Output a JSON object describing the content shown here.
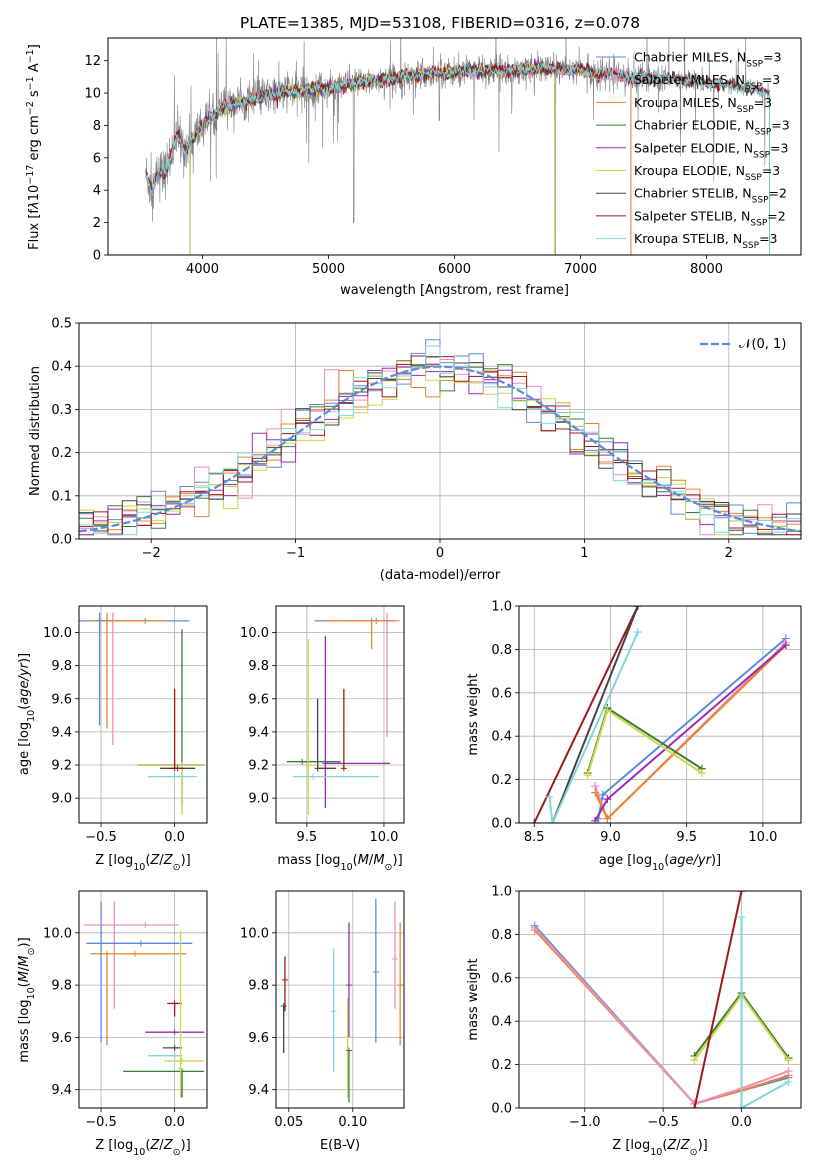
{
  "figure_title": "PLATE=1385, MJD=53108, FIBERID=0316, z=0.078",
  "colors": {
    "Chabrier MILES": "#5b8bd9",
    "Salpeter MILES": "#f08cc0",
    "Kroupa MILES": "#e8862a",
    "Chabrier ELODIE": "#3a7d3a",
    "Salpeter ELODIE": "#a028b8",
    "Kroupa ELODIE": "#c9d94a",
    "Chabrier STELIB": "#444444",
    "Salpeter STELIB": "#a01818",
    "Kroupa STELIB": "#7fd6dc",
    "data": "#808080",
    "gaussian": "#5b8bd9"
  },
  "chart_data": [
    {
      "id": "spectrum",
      "type": "line",
      "title": "PLATE=1385, MJD=53108, FIBERID=0316, z=0.078",
      "xlabel": "wavelength [Angstrom, rest frame]",
      "ylabel": "Flux [f",
      "ylabel_rest": "10",
      "xlim": [
        3250,
        8750
      ],
      "ylim": [
        0,
        13.4
      ],
      "xticks": [
        4000,
        5000,
        6000,
        7000,
        8000
      ],
      "yticks": [
        0,
        2,
        4,
        6,
        8,
        10,
        12
      ],
      "grid": false,
      "legend_position": "right",
      "legend": [
        {
          "name": "Chabrier MILES",
          "sub": "3"
        },
        {
          "name": "Salpeter MILES",
          "sub": "3"
        },
        {
          "name": "Kroupa MILES",
          "sub": "3"
        },
        {
          "name": "Chabrier ELODIE",
          "sub": "3"
        },
        {
          "name": "Salpeter ELODIE",
          "sub": "3"
        },
        {
          "name": "Kroupa ELODIE",
          "sub": "3"
        },
        {
          "name": "Chabrier STELIB",
          "sub": "2"
        },
        {
          "name": "Salpeter STELIB",
          "sub": "2"
        },
        {
          "name": "Kroupa STELIB",
          "sub": "3"
        }
      ],
      "continuum_x": [
        3550,
        3600,
        3650,
        3700,
        3750,
        3800,
        3850,
        3900,
        3950,
        4000,
        4100,
        4200,
        4300,
        4400,
        4500,
        4600,
        4800,
        5000,
        5200,
        5400,
        5600,
        5800,
        6000,
        6200,
        6400,
        6600,
        6800,
        7000,
        7200,
        7400,
        7600,
        7800,
        8000,
        8200,
        8400,
        8500
      ],
      "continuum_y": [
        5.0,
        4.0,
        5.2,
        5.0,
        6.2,
        7.5,
        6.6,
        6.8,
        7.5,
        8.0,
        8.8,
        9.2,
        9.4,
        9.6,
        9.8,
        10.0,
        10.2,
        10.3,
        10.6,
        10.8,
        11.0,
        11.2,
        11.3,
        11.4,
        11.4,
        11.5,
        11.5,
        11.4,
        11.2,
        11.0,
        10.9,
        10.8,
        10.6,
        10.5,
        10.2,
        10.0
      ]
    },
    {
      "id": "residuals",
      "type": "histogram",
      "xlabel": "(data-model)/error",
      "ylabel": "Normed distribution",
      "xlim": [
        -2.5,
        2.5
      ],
      "ylim": [
        0,
        0.5
      ],
      "xticks": [
        -2,
        -1,
        0,
        1,
        2
      ],
      "yticks": [
        0.0,
        0.1,
        0.2,
        0.3,
        0.4,
        0.5
      ],
      "grid": true,
      "legend": [
        "𝒩(0, 1)"
      ],
      "legend_position": "top-right",
      "bin_width": 0.1,
      "bin_start": -2.5
    },
    {
      "id": "age-vs-Z",
      "type": "errorbar",
      "xlabel": "Z [log",
      "ylabel": "age  [log",
      "xlim": [
        -0.65,
        0.22
      ],
      "ylim": [
        8.85,
        10.16
      ],
      "xticks": [
        -0.5,
        0.0
      ],
      "yticks": [
        9.0,
        9.2,
        9.4,
        9.6,
        9.8,
        10.0
      ],
      "grid": true,
      "points": [
        {
          "model": "Chabrier MILES",
          "x": -0.2,
          "y": 10.07,
          "xerr": [
            0.6,
            0.3
          ],
          "yerr": [
            0.0,
            0.0
          ]
        },
        {
          "model": "Salpeter MILES",
          "x": -0.42,
          "y": 10.07,
          "xerr": [
            0.1,
            0.2
          ],
          "yerr": [
            0.75,
            0.05
          ]
        },
        {
          "model": "Kroupa MILES",
          "x": -0.46,
          "y": 10.07,
          "xerr": [
            0.1,
            0.4
          ],
          "yerr": [
            0.65,
            0.05
          ]
        },
        {
          "model": "Chabrier ELODIE",
          "x": 0.05,
          "y": 9.2,
          "xerr": [
            0.3,
            0.15
          ],
          "yerr": [
            0.25,
            0.82
          ]
        },
        {
          "model": "Salpeter ELODIE",
          "x": 0.0,
          "y": 9.2,
          "xerr": [
            0.25,
            0.2
          ],
          "yerr": [
            0.0,
            0.0
          ]
        },
        {
          "model": "Kroupa ELODIE",
          "x": 0.05,
          "y": 9.2,
          "xerr": [
            0.3,
            0.15
          ],
          "yerr": [
            0.3,
            0.0
          ]
        },
        {
          "model": "Chabrier STELIB",
          "x": 0.02,
          "y": 9.18,
          "xerr": [
            0.12,
            0.12
          ],
          "yerr": [
            0.0,
            0.0
          ]
        },
        {
          "model": "Salpeter STELIB",
          "x": 0.0,
          "y": 9.18,
          "xerr": [
            0.0,
            0.06
          ],
          "yerr": [
            0.0,
            0.48
          ]
        },
        {
          "model": "Kroupa STELIB",
          "x": 0.0,
          "y": 9.13,
          "xerr": [
            0.18,
            0.15
          ],
          "yerr": [
            0.0,
            0.0
          ]
        },
        {
          "model": "Chabrier MILES",
          "x": -0.51,
          "y": 10.07,
          "xerr": [
            0,
            0
          ],
          "yerr": [
            0.63,
            0.05
          ]
        }
      ]
    },
    {
      "id": "age-vs-mass",
      "type": "errorbar",
      "xlabel": "mass [log",
      "ylabel": "",
      "xlim": [
        9.3,
        10.13
      ],
      "ylim": [
        8.85,
        10.16
      ],
      "xticks": [
        9.5,
        10.0
      ],
      "yticks": [
        9.0,
        9.2,
        9.4,
        9.6,
        9.8,
        10.0
      ],
      "grid": true,
      "points": [
        {
          "model": "Chabrier MILES",
          "x": 9.95,
          "y": 10.07,
          "xerr": [
            0.4,
            0.15
          ],
          "yerr": [
            0.0,
            0.0
          ]
        },
        {
          "model": "Salpeter MILES",
          "x": 10.02,
          "y": 10.07,
          "xerr": [
            0.3,
            0.08
          ],
          "yerr": [
            0.7,
            0.05
          ]
        },
        {
          "model": "Kroupa MILES",
          "x": 9.92,
          "y": 10.07,
          "xerr": [
            0.3,
            0.15
          ],
          "yerr": [
            0.17,
            0.0
          ]
        },
        {
          "model": "Chabrier ELODIE",
          "x": 9.47,
          "y": 9.22,
          "xerr": [
            0.1,
            0.25
          ],
          "yerr": [
            0.0,
            0.0
          ]
        },
        {
          "model": "Salpeter ELODIE",
          "x": 9.62,
          "y": 9.21,
          "xerr": [
            0.0,
            0.42
          ],
          "yerr": [
            0.27,
            0.77
          ]
        },
        {
          "model": "Kroupa ELODIE",
          "x": 9.51,
          "y": 9.2,
          "xerr": [
            0.0,
            0.05
          ],
          "yerr": [
            0.3,
            0.76
          ]
        },
        {
          "model": "Chabrier STELIB",
          "x": 9.57,
          "y": 9.18,
          "xerr": [
            0.0,
            0.12
          ],
          "yerr": [
            0.0,
            0.42
          ]
        },
        {
          "model": "Salpeter STELIB",
          "x": 9.74,
          "y": 9.18,
          "xerr": [
            0.0,
            0.0
          ],
          "yerr": [
            0.0,
            0.48
          ]
        },
        {
          "model": "Kroupa STELIB",
          "x": 9.54,
          "y": 9.13,
          "xerr": [
            0.13,
            0.43
          ],
          "yerr": [
            0.0,
            0.0
          ]
        }
      ]
    },
    {
      "id": "weight-vs-age",
      "type": "line",
      "xlabel": "age  [log",
      "ylabel": "mass weight",
      "xlim": [
        8.4,
        10.25
      ],
      "ylim": [
        0.0,
        1.0
      ],
      "xticks": [
        8.5,
        9.0,
        9.5,
        10.0
      ],
      "yticks": [
        0.0,
        0.2,
        0.4,
        0.6,
        0.8,
        1.0
      ],
      "grid": true,
      "series": [
        {
          "model": "Salpeter STELIB",
          "x": [
            8.5,
            9.18
          ],
          "y": [
            0.0,
            1.0
          ]
        },
        {
          "model": "Chabrier STELIB",
          "x": [
            8.62,
            9.18
          ],
          "y": [
            0.0,
            1.0
          ]
        },
        {
          "model": "Kroupa STELIB",
          "x": [
            8.6,
            8.62,
            9.18
          ],
          "y": [
            0.12,
            0.0,
            0.88
          ]
        },
        {
          "model": "Chabrier MILES",
          "x": [
            8.92,
            8.95,
            10.15
          ],
          "y": [
            0.02,
            0.13,
            0.85
          ]
        },
        {
          "model": "Salpeter MILES",
          "x": [
            8.9,
            8.98,
            10.15
          ],
          "y": [
            0.17,
            0.02,
            0.83
          ]
        },
        {
          "model": "Kroupa MILES",
          "x": [
            8.9,
            8.98,
            10.15
          ],
          "y": [
            0.14,
            0.02,
            0.82
          ]
        },
        {
          "model": "Salpeter ELODIE",
          "x": [
            8.9,
            8.98,
            10.15
          ],
          "y": [
            0.01,
            0.11,
            0.82
          ]
        },
        {
          "model": "Chabrier ELODIE",
          "x": [
            8.85,
            8.98,
            9.6
          ],
          "y": [
            0.23,
            0.53,
            0.25
          ]
        },
        {
          "model": "Kroupa ELODIE",
          "x": [
            8.85,
            8.98,
            9.6
          ],
          "y": [
            0.22,
            0.52,
            0.23
          ]
        }
      ]
    },
    {
      "id": "mass-vs-Z",
      "type": "errorbar",
      "xlabel": "Z [log",
      "ylabel": "mass [log",
      "xlim": [
        -0.65,
        0.22
      ],
      "ylim": [
        9.33,
        10.16
      ],
      "xticks": [
        -0.5,
        0.0
      ],
      "yticks": [
        9.4,
        9.6,
        9.8,
        10.0
      ],
      "grid": true,
      "points": [
        {
          "model": "Salpeter MILES",
          "x": -0.2,
          "y": 10.03,
          "xerr": [
            0.42,
            0.23
          ],
          "yerr": [
            0.0,
            0.0
          ]
        },
        {
          "model": "Salpeter MILES",
          "x": -0.41,
          "y": 10.03,
          "xerr": [
            0,
            0
          ],
          "yerr": [
            0.32,
            0.09
          ]
        },
        {
          "model": "Chabrier MILES",
          "x": -0.23,
          "y": 9.96,
          "xerr": [
            0.37,
            0.35
          ],
          "yerr": [
            0.0,
            0.0
          ]
        },
        {
          "model": "Chabrier MILES",
          "x": -0.5,
          "y": 9.96,
          "xerr": [
            0,
            0
          ],
          "yerr": [
            0.38,
            0.16
          ]
        },
        {
          "model": "Kroupa MILES",
          "x": -0.27,
          "y": 9.92,
          "xerr": [
            0.3,
            0.35
          ],
          "yerr": [
            0.0,
            0.0
          ]
        },
        {
          "model": "Kroupa MILES",
          "x": -0.46,
          "y": 9.92,
          "xerr": [
            0,
            0
          ],
          "yerr": [
            0.35,
            0.0
          ]
        },
        {
          "model": "Salpeter STELIB",
          "x": 0.0,
          "y": 9.73,
          "xerr": [
            0.05,
            0.05
          ],
          "yerr": [
            0.05,
            0.0
          ]
        },
        {
          "model": "Salpeter ELODIE",
          "x": 0.0,
          "y": 9.62,
          "xerr": [
            0.2,
            0.2
          ],
          "yerr": [
            0.0,
            0.0
          ]
        },
        {
          "model": "Chabrier STELIB",
          "x": 0.0,
          "y": 9.56,
          "xerr": [
            0.08,
            0.05
          ],
          "yerr": [
            0.0,
            0.0
          ]
        },
        {
          "model": "Kroupa STELIB",
          "x": 0.0,
          "y": 9.53,
          "xerr": [
            0.18,
            0.05
          ],
          "yerr": [
            0.0,
            0.0
          ]
        },
        {
          "model": "Kroupa ELODIE",
          "x": 0.05,
          "y": 9.51,
          "xerr": [
            0.12,
            0.15
          ],
          "yerr": [
            0.0,
            0.0
          ]
        },
        {
          "model": "Chabrier ELODIE",
          "x": 0.05,
          "y": 9.47,
          "xerr": [
            0.4,
            0.15
          ],
          "yerr": [
            0.1,
            0.0
          ]
        },
        {
          "model": "Chabrier ELODIE",
          "x": 0.05,
          "y": 9.47,
          "xerr": [
            0,
            0
          ],
          "yerr": [
            0.1,
            0.0
          ]
        },
        {
          "model": "Kroupa ELODIE",
          "x": 0.04,
          "y": 9.48,
          "xerr": [
            0,
            0
          ],
          "yerr": [
            0.11,
            0.53
          ]
        }
      ]
    },
    {
      "id": "mass-vs-EBV",
      "type": "errorbar",
      "xlabel": "E(B-V)",
      "ylabel": "",
      "xlim": [
        0.04,
        0.14
      ],
      "ylim": [
        9.33,
        10.16
      ],
      "xticks": [
        0.05,
        0.1
      ],
      "yticks": [
        9.4,
        9.6,
        9.8,
        10.0
      ],
      "grid": true,
      "points": [
        {
          "model": "Chabrier STELIB",
          "x": 0.046,
          "y": 9.72,
          "xerr": [
            0,
            0
          ],
          "yerr": [
            0.18,
            0.0
          ]
        },
        {
          "model": "Salpeter STELIB",
          "x": 0.047,
          "y": 9.82,
          "xerr": [
            0,
            0
          ],
          "yerr": [
            0.12,
            0.09
          ]
        },
        {
          "model": "Kroupa STELIB",
          "x": 0.085,
          "y": 9.7,
          "xerr": [
            0,
            0
          ],
          "yerr": [
            0.23,
            0.24
          ]
        },
        {
          "model": "Kroupa ELODIE",
          "x": 0.096,
          "y": 9.6,
          "xerr": [
            0,
            0
          ],
          "yerr": [
            0.23,
            0.15
          ]
        },
        {
          "model": "Chabrier ELODIE",
          "x": 0.097,
          "y": 9.55,
          "xerr": [
            0,
            0
          ],
          "yerr": [
            0.2,
            0.0
          ]
        },
        {
          "model": "Salpeter ELODIE",
          "x": 0.097,
          "y": 9.8,
          "xerr": [
            0,
            0
          ],
          "yerr": [
            0.2,
            0.24
          ]
        },
        {
          "model": "Chabrier MILES",
          "x": 0.118,
          "y": 9.85,
          "xerr": [
            0,
            0
          ],
          "yerr": [
            0.27,
            0.28
          ]
        },
        {
          "model": "Salpeter MILES",
          "x": 0.133,
          "y": 9.9,
          "xerr": [
            0,
            0
          ],
          "yerr": [
            0.19,
            0.22
          ]
        },
        {
          "model": "Kroupa MILES",
          "x": 0.137,
          "y": 9.8,
          "xerr": [
            0,
            0
          ],
          "yerr": [
            0.23,
            0.24
          ]
        }
      ]
    },
    {
      "id": "weight-vs-Z",
      "type": "line",
      "xlabel": "Z [log",
      "ylabel": "mass weight",
      "xlim": [
        -1.42,
        0.38
      ],
      "ylim": [
        0.0,
        1.0
      ],
      "xticks": [
        -1.0,
        -0.5,
        0.0
      ],
      "yticks": [
        0.0,
        0.2,
        0.4,
        0.6,
        0.8,
        1.0
      ],
      "grid": true,
      "series": [
        {
          "model": "Chabrier MILES",
          "x": [
            -1.32,
            -0.3,
            0.0,
            0.3
          ],
          "y": [
            0.84,
            0.02,
            0.08,
            0.14
          ]
        },
        {
          "model": "Kroupa MILES",
          "x": [
            -1.32,
            -0.3,
            0.0,
            0.3
          ],
          "y": [
            0.82,
            0.02,
            0.08,
            0.15
          ]
        },
        {
          "model": "Salpeter MILES",
          "x": [
            -1.32,
            -0.3,
            0.0,
            0.3
          ],
          "y": [
            0.83,
            0.02,
            0.09,
            0.17
          ]
        },
        {
          "model": "Chabrier ELODIE",
          "x": [
            -0.3,
            0.0,
            0.3
          ],
          "y": [
            0.24,
            0.53,
            0.23
          ]
        },
        {
          "model": "Kroupa ELODIE",
          "x": [
            -0.3,
            0.0,
            0.3
          ],
          "y": [
            0.22,
            0.52,
            0.22
          ]
        },
        {
          "model": "Salpeter STELIB",
          "x": [
            -0.3,
            0.0,
            0.0
          ],
          "y": [
            0.0,
            1.0,
            1.0
          ]
        },
        {
          "model": "Kroupa STELIB",
          "x": [
            0.0,
            0.0,
            0.3
          ],
          "y": [
            0.88,
            0.0,
            0.12
          ]
        }
      ]
    }
  ]
}
